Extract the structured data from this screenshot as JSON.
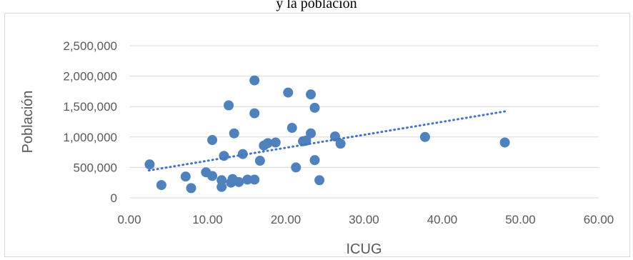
{
  "page_caption": "y la población",
  "chart_data": {
    "type": "scatter",
    "xlabel": "ICUG",
    "ylabel": "Población",
    "xlim": [
      0,
      60
    ],
    "ylim": [
      0,
      2500000
    ],
    "x_ticks": [
      "0.00",
      "10.00",
      "20.00",
      "30.00",
      "40.00",
      "50.00",
      "60.00"
    ],
    "y_ticks": [
      "0",
      "500,000",
      "1,000,000",
      "1,500,000",
      "2,000,000",
      "2,500,000"
    ],
    "grid": "horizontal",
    "legend": "none",
    "marker_color": "#4f81bd",
    "trendline": {
      "type": "linear",
      "style": "dotted",
      "color": "#4472c4",
      "x": [
        2.5,
        48
      ],
      "y": [
        450000,
        1420000
      ]
    },
    "points": [
      {
        "x": 2.6,
        "y": 550000
      },
      {
        "x": 4.1,
        "y": 210000
      },
      {
        "x": 7.2,
        "y": 350000
      },
      {
        "x": 7.9,
        "y": 160000
      },
      {
        "x": 9.8,
        "y": 420000
      },
      {
        "x": 10.6,
        "y": 950000
      },
      {
        "x": 10.6,
        "y": 360000
      },
      {
        "x": 11.8,
        "y": 180000
      },
      {
        "x": 11.8,
        "y": 290000
      },
      {
        "x": 12.1,
        "y": 690000
      },
      {
        "x": 12.7,
        "y": 1520000
      },
      {
        "x": 13.0,
        "y": 250000
      },
      {
        "x": 13.2,
        "y": 310000
      },
      {
        "x": 13.4,
        "y": 1060000
      },
      {
        "x": 14.0,
        "y": 260000
      },
      {
        "x": 14.5,
        "y": 720000
      },
      {
        "x": 15.1,
        "y": 300000
      },
      {
        "x": 16.0,
        "y": 1930000
      },
      {
        "x": 16.0,
        "y": 1390000
      },
      {
        "x": 16.0,
        "y": 300000
      },
      {
        "x": 16.7,
        "y": 610000
      },
      {
        "x": 17.2,
        "y": 860000
      },
      {
        "x": 17.7,
        "y": 900000
      },
      {
        "x": 18.7,
        "y": 910000
      },
      {
        "x": 20.3,
        "y": 1730000
      },
      {
        "x": 20.8,
        "y": 1150000
      },
      {
        "x": 21.3,
        "y": 500000
      },
      {
        "x": 22.2,
        "y": 930000
      },
      {
        "x": 22.6,
        "y": 940000
      },
      {
        "x": 23.2,
        "y": 1700000
      },
      {
        "x": 23.2,
        "y": 1060000
      },
      {
        "x": 23.7,
        "y": 1480000
      },
      {
        "x": 23.7,
        "y": 620000
      },
      {
        "x": 24.3,
        "y": 290000
      },
      {
        "x": 26.3,
        "y": 1010000
      },
      {
        "x": 27.0,
        "y": 890000
      },
      {
        "x": 37.8,
        "y": 1000000
      },
      {
        "x": 48.0,
        "y": 910000
      }
    ]
  }
}
